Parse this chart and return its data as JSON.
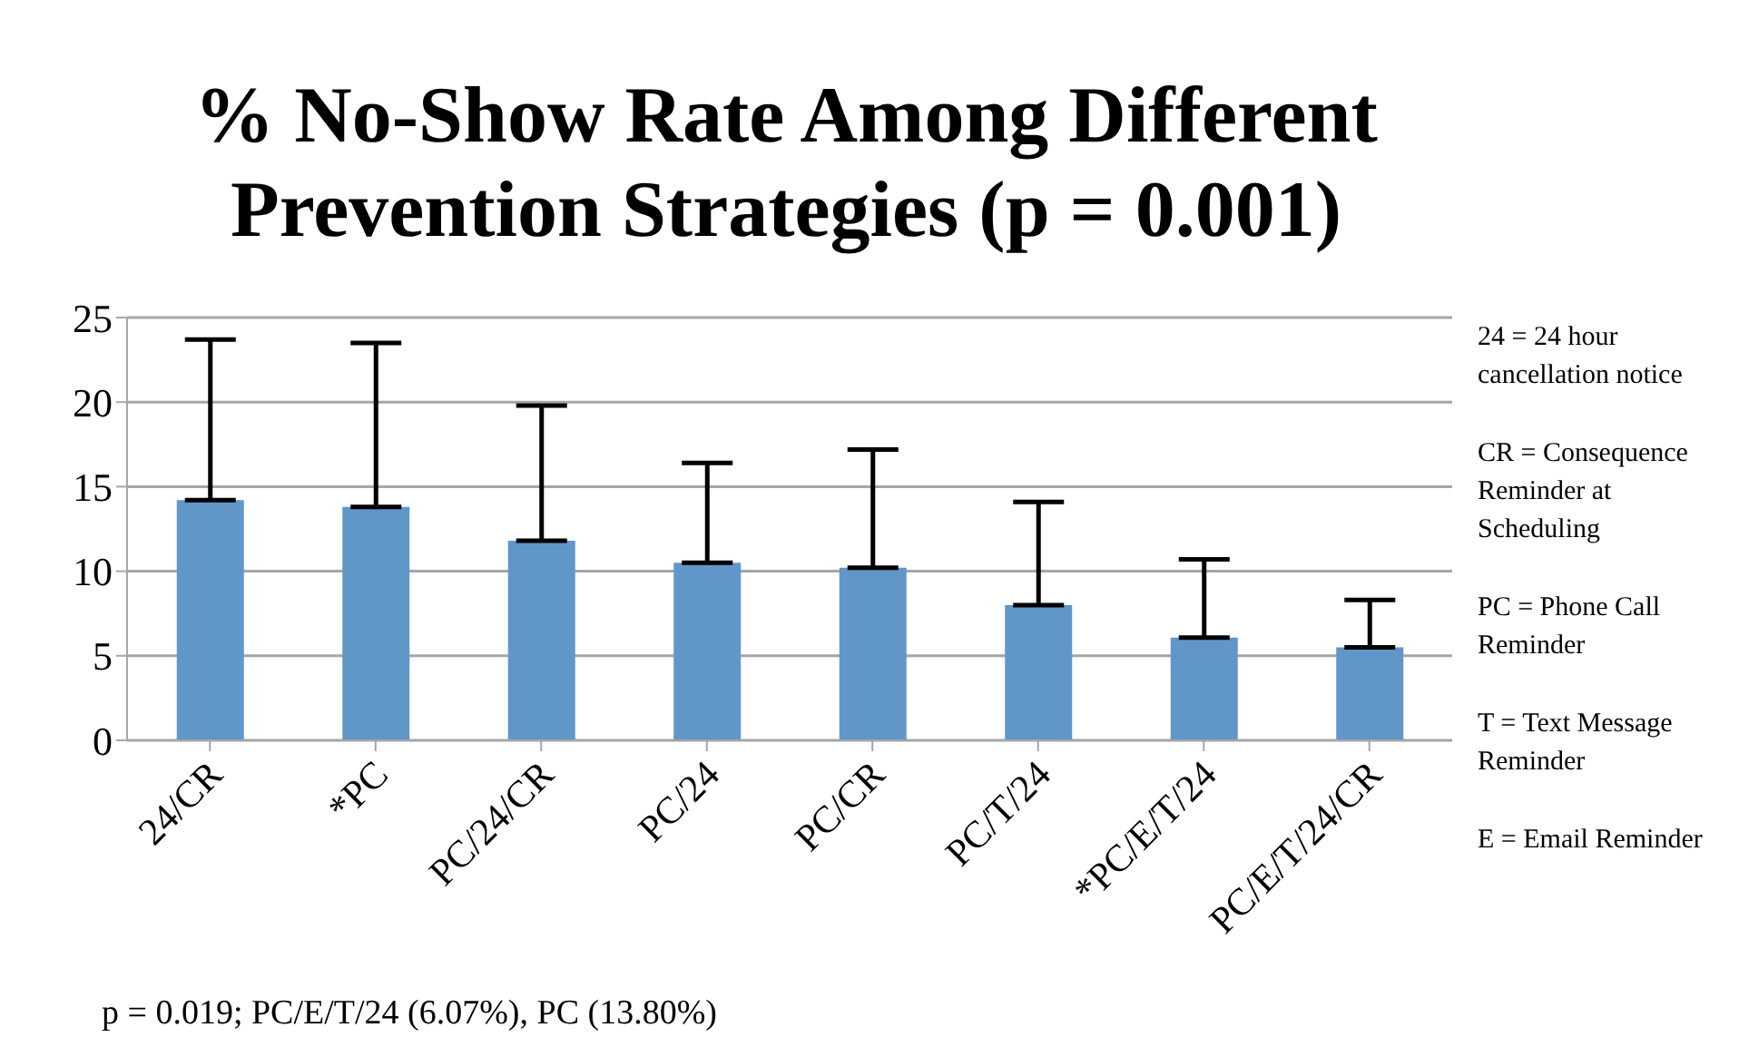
{
  "chart_data": {
    "type": "bar",
    "title": "% No-Show Rate Among Different Prevention Strategies (p = 0.001)",
    "categories": [
      "24/CR",
      "*PC",
      "PC/24/CR",
      "PC/24",
      "PC/CR",
      "PC/T/24",
      "*PC/E/T/24",
      "PC/E/T/24/CR"
    ],
    "values": [
      14.2,
      13.8,
      11.8,
      10.5,
      10.2,
      8.0,
      6.07,
      5.5
    ],
    "errors": [
      [
        14.2,
        23.7
      ],
      [
        13.8,
        23.5
      ],
      [
        11.8,
        19.8
      ],
      [
        10.5,
        16.4
      ],
      [
        10.2,
        17.2
      ],
      [
        8.0,
        14.1
      ],
      [
        6.07,
        10.7
      ],
      [
        5.5,
        8.3
      ]
    ],
    "color": "#6196c9",
    "ylim": [
      0,
      25
    ],
    "yticks": [
      0,
      5,
      10,
      15,
      20,
      25
    ],
    "grid": "y",
    "annotations": [
      "24 = 24 hour cancellation notice",
      "CR = Consequence Reminder at Scheduling",
      "PC = Phone Call Reminder",
      "T = Text Message Reminder",
      "E = Email Reminder",
      "p = 0.019; PC/E/T/24 (6.07%), PC (13.80%)"
    ]
  }
}
